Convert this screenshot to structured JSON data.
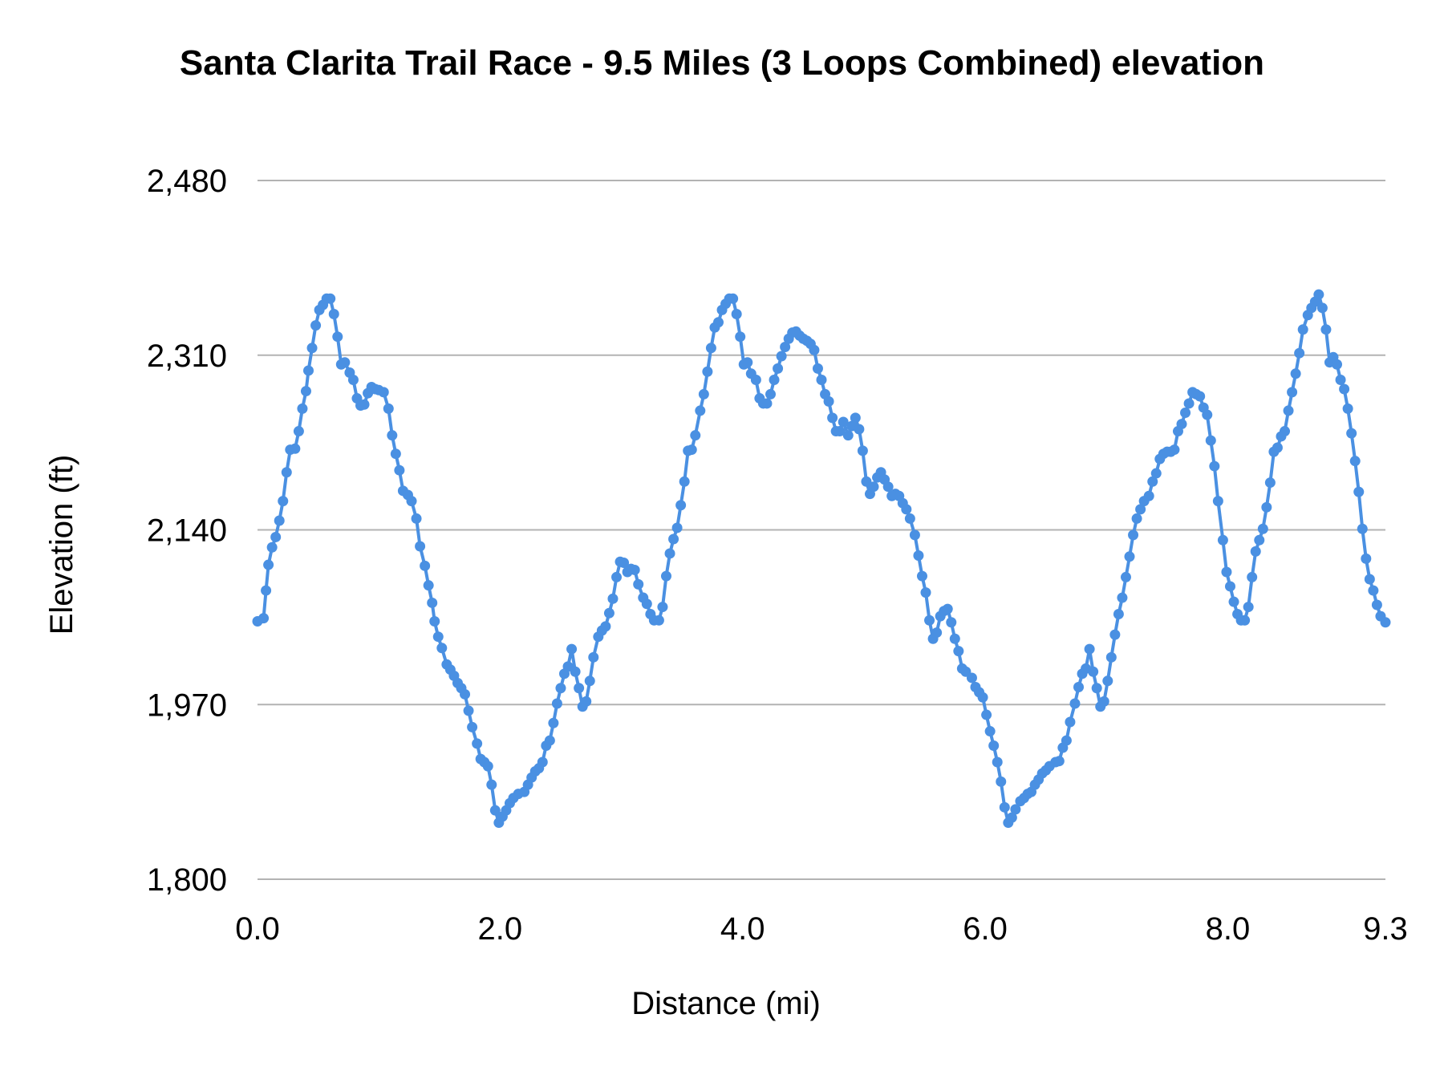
{
  "chart_data": {
    "type": "line",
    "title": "Santa Clarita Trail Race - 9.5 Miles (3 Loops Combined) elevation",
    "xlabel": "Distance (mi)",
    "ylabel": "Elevation (ft)",
    "xlim": [
      0,
      9.3
    ],
    "ylim": [
      1800,
      2480
    ],
    "x_ticks": [
      "0.0",
      "2.0",
      "4.0",
      "6.0",
      "8.0",
      "9.3"
    ],
    "x_tick_values": [
      0,
      2,
      4,
      6,
      8,
      9.3
    ],
    "y_ticks": [
      "2,480",
      "2,310",
      "2,140",
      "1,970",
      "1,800"
    ],
    "y_tick_values": [
      2480,
      2310,
      2140,
      1970,
      1800
    ],
    "grid": "horizontal",
    "legend": "none",
    "markers": true,
    "colors": {
      "series": "#4a90e2",
      "grid": "#b3b3b3"
    },
    "series": [
      {
        "points": [
          [
            0,
            2051
          ],
          [
            0.05,
            2054
          ],
          [
            0.07,
            2081
          ],
          [
            0.09,
            2106
          ],
          [
            0.12,
            2123
          ],
          [
            0.15,
            2133
          ],
          [
            0.18,
            2149
          ],
          [
            0.21,
            2168
          ],
          [
            0.24,
            2196
          ],
          [
            0.27,
            2218
          ],
          [
            0.31,
            2219
          ],
          [
            0.34,
            2236
          ],
          [
            0.37,
            2258
          ],
          [
            0.4,
            2275
          ],
          [
            0.42,
            2295
          ],
          [
            0.45,
            2317
          ],
          [
            0.48,
            2339
          ],
          [
            0.51,
            2354
          ],
          [
            0.54,
            2359
          ],
          [
            0.57,
            2365
          ],
          [
            0.6,
            2365
          ],
          [
            0.63,
            2350
          ],
          [
            0.66,
            2328
          ],
          [
            0.69,
            2301
          ],
          [
            0.72,
            2303
          ],
          [
            0.76,
            2293
          ],
          [
            0.79,
            2286
          ],
          [
            0.82,
            2268
          ],
          [
            0.85,
            2261
          ],
          [
            0.88,
            2262
          ],
          [
            0.91,
            2273
          ],
          [
            0.94,
            2279
          ],
          [
            0.97,
            2277
          ],
          [
            1.0,
            2276
          ],
          [
            1.04,
            2274
          ],
          [
            1.08,
            2258
          ],
          [
            1.11,
            2232
          ],
          [
            1.14,
            2214
          ],
          [
            1.17,
            2198
          ],
          [
            1.2,
            2178
          ],
          [
            1.24,
            2174
          ],
          [
            1.27,
            2168
          ],
          [
            1.31,
            2151
          ],
          [
            1.34,
            2124
          ],
          [
            1.38,
            2105
          ],
          [
            1.41,
            2086
          ],
          [
            1.44,
            2069
          ],
          [
            1.46,
            2051
          ],
          [
            1.49,
            2036
          ],
          [
            1.52,
            2025
          ],
          [
            1.56,
            2009
          ],
          [
            1.59,
            2004
          ],
          [
            1.62,
            1998
          ],
          [
            1.65,
            1991
          ],
          [
            1.68,
            1986
          ],
          [
            1.71,
            1980
          ],
          [
            1.74,
            1964
          ],
          [
            1.77,
            1948
          ],
          [
            1.81,
            1932
          ],
          [
            1.84,
            1917
          ],
          [
            1.87,
            1914
          ],
          [
            1.9,
            1910
          ],
          [
            1.93,
            1892
          ],
          [
            1.96,
            1867
          ],
          [
            1.99,
            1855
          ],
          [
            2.02,
            1861
          ],
          [
            2.05,
            1867
          ],
          [
            2.08,
            1874
          ],
          [
            2.11,
            1879
          ],
          [
            2.15,
            1883
          ],
          [
            2.2,
            1885
          ],
          [
            2.23,
            1892
          ],
          [
            2.26,
            1899
          ],
          [
            2.29,
            1905
          ],
          [
            2.32,
            1908
          ],
          [
            2.35,
            1914
          ],
          [
            2.38,
            1930
          ],
          [
            2.41,
            1935
          ],
          [
            2.44,
            1952
          ],
          [
            2.47,
            1971
          ],
          [
            2.5,
            1986
          ],
          [
            2.53,
            2000
          ],
          [
            2.56,
            2007
          ],
          [
            2.59,
            2024
          ],
          [
            2.62,
            2002
          ],
          [
            2.65,
            1986
          ],
          [
            2.68,
            1968
          ],
          [
            2.71,
            1973
          ],
          [
            2.74,
            1993
          ],
          [
            2.77,
            2016
          ],
          [
            2.81,
            2036
          ],
          [
            2.84,
            2042
          ],
          [
            2.87,
            2046
          ],
          [
            2.9,
            2059
          ],
          [
            2.93,
            2073
          ],
          [
            2.96,
            2094
          ],
          [
            2.99,
            2109
          ],
          [
            3.02,
            2108
          ],
          [
            3.05,
            2099
          ],
          [
            3.08,
            2102
          ],
          [
            3.11,
            2101
          ],
          [
            3.14,
            2087
          ],
          [
            3.18,
            2074
          ],
          [
            3.21,
            2068
          ],
          [
            3.24,
            2058
          ],
          [
            3.27,
            2052
          ],
          [
            3.31,
            2052
          ],
          [
            3.34,
            2065
          ],
          [
            3.37,
            2095
          ],
          [
            3.4,
            2117
          ],
          [
            3.43,
            2131
          ],
          [
            3.46,
            2142
          ],
          [
            3.49,
            2164
          ],
          [
            3.52,
            2187
          ],
          [
            3.55,
            2217
          ],
          [
            3.58,
            2218
          ],
          [
            3.61,
            2232
          ],
          [
            3.65,
            2256
          ],
          [
            3.68,
            2272
          ],
          [
            3.71,
            2294
          ],
          [
            3.74,
            2317
          ],
          [
            3.77,
            2337
          ],
          [
            3.8,
            2342
          ],
          [
            3.83,
            2354
          ],
          [
            3.86,
            2360
          ],
          [
            3.89,
            2365
          ],
          [
            3.92,
            2365
          ],
          [
            3.95,
            2350
          ],
          [
            3.98,
            2328
          ],
          [
            4.01,
            2301
          ],
          [
            4.04,
            2303
          ],
          [
            4.07,
            2292
          ],
          [
            4.11,
            2286
          ],
          [
            4.14,
            2268
          ],
          [
            4.17,
            2263
          ],
          [
            4.2,
            2263
          ],
          [
            4.23,
            2272
          ],
          [
            4.26,
            2286
          ],
          [
            4.29,
            2297
          ],
          [
            4.32,
            2309
          ],
          [
            4.35,
            2318
          ],
          [
            4.38,
            2326
          ],
          [
            4.41,
            2332
          ],
          [
            4.44,
            2333
          ],
          [
            4.47,
            2329
          ],
          [
            4.5,
            2326
          ],
          [
            4.53,
            2324
          ],
          [
            4.56,
            2321
          ],
          [
            4.59,
            2315
          ],
          [
            4.62,
            2297
          ],
          [
            4.65,
            2286
          ],
          [
            4.68,
            2272
          ],
          [
            4.71,
            2265
          ],
          [
            4.74,
            2249
          ],
          [
            4.77,
            2236
          ],
          [
            4.8,
            2236
          ],
          [
            4.83,
            2245
          ],
          [
            4.87,
            2232
          ],
          [
            4.9,
            2241
          ],
          [
            4.93,
            2249
          ],
          [
            4.96,
            2238
          ],
          [
            4.99,
            2217
          ],
          [
            5.02,
            2187
          ],
          [
            5.05,
            2175
          ],
          [
            5.08,
            2182
          ],
          [
            5.11,
            2191
          ],
          [
            5.14,
            2196
          ],
          [
            5.17,
            2189
          ],
          [
            5.2,
            2182
          ],
          [
            5.23,
            2173
          ],
          [
            5.26,
            2175
          ],
          [
            5.29,
            2173
          ],
          [
            5.32,
            2166
          ],
          [
            5.35,
            2160
          ],
          [
            5.38,
            2151
          ],
          [
            5.42,
            2135
          ],
          [
            5.45,
            2115
          ],
          [
            5.48,
            2095
          ],
          [
            5.51,
            2079
          ],
          [
            5.54,
            2052
          ],
          [
            5.57,
            2034
          ],
          [
            5.6,
            2040
          ],
          [
            5.63,
            2056
          ],
          [
            5.66,
            2061
          ],
          [
            5.69,
            2063
          ],
          [
            5.72,
            2050
          ],
          [
            5.75,
            2034
          ],
          [
            5.78,
            2022
          ],
          [
            5.81,
            2005
          ],
          [
            5.84,
            2002
          ],
          [
            5.89,
            1996
          ],
          [
            5.92,
            1987
          ],
          [
            5.95,
            1982
          ],
          [
            5.98,
            1977
          ],
          [
            6.01,
            1960
          ],
          [
            6.04,
            1944
          ],
          [
            6.07,
            1930
          ],
          [
            6.1,
            1914
          ],
          [
            6.13,
            1895
          ],
          [
            6.16,
            1870
          ],
          [
            6.19,
            1855
          ],
          [
            6.22,
            1860
          ],
          [
            6.25,
            1868
          ],
          [
            6.29,
            1876
          ],
          [
            6.32,
            1879
          ],
          [
            6.35,
            1883
          ],
          [
            6.38,
            1885
          ],
          [
            6.41,
            1892
          ],
          [
            6.44,
            1897
          ],
          [
            6.47,
            1903
          ],
          [
            6.5,
            1906
          ],
          [
            6.53,
            1910
          ],
          [
            6.58,
            1914
          ],
          [
            6.61,
            1915
          ],
          [
            6.64,
            1928
          ],
          [
            6.67,
            1935
          ],
          [
            6.7,
            1953
          ],
          [
            6.74,
            1971
          ],
          [
            6.77,
            1987
          ],
          [
            6.8,
            2000
          ],
          [
            6.83,
            2005
          ],
          [
            6.86,
            2024
          ],
          [
            6.89,
            2002
          ],
          [
            6.92,
            1986
          ],
          [
            6.95,
            1968
          ],
          [
            6.98,
            1973
          ],
          [
            7.01,
            1993
          ],
          [
            7.04,
            2016
          ],
          [
            7.07,
            2038
          ],
          [
            7.1,
            2058
          ],
          [
            7.13,
            2074
          ],
          [
            7.16,
            2094
          ],
          [
            7.19,
            2114
          ],
          [
            7.22,
            2135
          ],
          [
            7.25,
            2151
          ],
          [
            7.28,
            2160
          ],
          [
            7.31,
            2168
          ],
          [
            7.35,
            2173
          ],
          [
            7.38,
            2187
          ],
          [
            7.41,
            2195
          ],
          [
            7.44,
            2209
          ],
          [
            7.47,
            2214
          ],
          [
            7.5,
            2216
          ],
          [
            7.53,
            2216
          ],
          [
            7.56,
            2218
          ],
          [
            7.59,
            2236
          ],
          [
            7.62,
            2243
          ],
          [
            7.65,
            2254
          ],
          [
            7.68,
            2263
          ],
          [
            7.71,
            2274
          ],
          [
            7.74,
            2272
          ],
          [
            7.77,
            2270
          ],
          [
            7.8,
            2259
          ],
          [
            7.83,
            2252
          ],
          [
            7.86,
            2227
          ],
          [
            7.89,
            2202
          ],
          [
            7.92,
            2168
          ],
          [
            7.96,
            2130
          ],
          [
            7.99,
            2099
          ],
          [
            8.02,
            2085
          ],
          [
            8.05,
            2070
          ],
          [
            8.08,
            2058
          ],
          [
            8.11,
            2052
          ],
          [
            8.14,
            2052
          ],
          [
            8.17,
            2065
          ],
          [
            8.2,
            2094
          ],
          [
            8.23,
            2119
          ],
          [
            8.26,
            2130
          ],
          [
            8.29,
            2141
          ],
          [
            8.32,
            2162
          ],
          [
            8.35,
            2186
          ],
          [
            8.38,
            2216
          ],
          [
            8.41,
            2220
          ],
          [
            8.44,
            2231
          ],
          [
            8.47,
            2236
          ],
          [
            8.5,
            2256
          ],
          [
            8.53,
            2274
          ],
          [
            8.56,
            2292
          ],
          [
            8.59,
            2312
          ],
          [
            8.62,
            2335
          ],
          [
            8.66,
            2349
          ],
          [
            8.69,
            2356
          ],
          [
            8.72,
            2362
          ],
          [
            8.75,
            2369
          ],
          [
            8.78,
            2356
          ],
          [
            8.81,
            2335
          ],
          [
            8.84,
            2303
          ],
          [
            8.87,
            2308
          ],
          [
            8.9,
            2301
          ],
          [
            8.93,
            2286
          ],
          [
            8.96,
            2277
          ],
          [
            8.99,
            2258
          ],
          [
            9.02,
            2234
          ],
          [
            9.05,
            2207
          ],
          [
            9.08,
            2177
          ],
          [
            9.11,
            2141
          ],
          [
            9.14,
            2112
          ],
          [
            9.17,
            2092
          ],
          [
            9.2,
            2081
          ],
          [
            9.23,
            2067
          ],
          [
            9.26,
            2056
          ],
          [
            9.3,
            2050
          ]
        ]
      }
    ]
  }
}
